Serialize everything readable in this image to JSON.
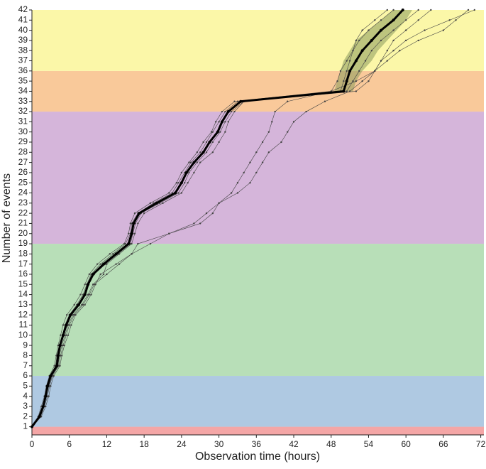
{
  "chart_data": {
    "type": "line",
    "x_label": "Observation time (hours)",
    "y_label": "Number of events",
    "xlim": [
      0,
      72.5
    ],
    "ylim": [
      0.2,
      42
    ],
    "xticks": [
      0,
      6,
      12,
      18,
      24,
      30,
      36,
      42,
      48,
      54,
      60,
      66,
      72
    ],
    "yticks": [
      1,
      2,
      3,
      4,
      5,
      6,
      7,
      8,
      9,
      10,
      11,
      12,
      13,
      14,
      15,
      16,
      17,
      18,
      19,
      20,
      21,
      22,
      23,
      24,
      25,
      26,
      27,
      28,
      29,
      30,
      31,
      32,
      33,
      34,
      35,
      36,
      37,
      38,
      39,
      40,
      41,
      42
    ],
    "bands": [
      {
        "from": 0.2,
        "to": 1,
        "color": "#f4a6a6"
      },
      {
        "from": 1,
        "to": 6,
        "color": "#afc9e2"
      },
      {
        "from": 6,
        "to": 19,
        "color": "#b8dfb8"
      },
      {
        "from": 19,
        "to": 32,
        "color": "#d5b5da"
      },
      {
        "from": 32,
        "to": 36,
        "color": "#f9c99a"
      },
      {
        "from": 36,
        "to": 42,
        "color": "#fbf7a8"
      }
    ],
    "y": [
      1,
      2,
      3,
      4,
      5,
      6,
      7,
      8,
      9,
      10,
      11,
      12,
      13,
      14,
      15,
      16,
      17,
      18,
      19,
      20,
      21,
      22,
      23,
      24,
      25,
      26,
      27,
      28,
      29,
      30,
      31,
      32,
      33,
      34,
      35,
      36,
      37,
      38,
      39,
      40,
      41,
      42
    ],
    "ribbon": {
      "y": [
        34,
        35,
        36,
        37,
        38,
        39,
        40,
        41,
        42
      ],
      "low": [
        48.5,
        49,
        49.5,
        50,
        51,
        52,
        54,
        56,
        58
      ],
      "high": [
        51.5,
        52,
        53,
        54.5,
        55.5,
        57,
        58.5,
        60,
        61
      ],
      "color": "#8a9a5b"
    },
    "series": [
      {
        "color": "#444444",
        "x": [
          0,
          1,
          1.5,
          2,
          2.3,
          2.8,
          3.6,
          3.9,
          4.2,
          4.6,
          5,
          5.6,
          6.8,
          7.8,
          8.5,
          9.2,
          10.5,
          12.5,
          14.8,
          15.5,
          15.8,
          16.5,
          19,
          22,
          23.2,
          24,
          25.2,
          26.5,
          27.5,
          28.8,
          29.5,
          30.5,
          32.5,
          48,
          49,
          49.5,
          50.5,
          51.5,
          52,
          53,
          55,
          57
        ]
      },
      {
        "color": "#444444",
        "x": [
          0,
          1.5,
          2.2,
          2.7,
          3,
          3.5,
          4.5,
          4.8,
          5.2,
          5.8,
          6.3,
          7,
          8.5,
          9.5,
          10.2,
          11,
          13.5,
          16,
          19,
          22,
          26,
          28,
          30,
          33,
          35,
          36,
          37,
          38,
          40,
          41,
          42,
          44,
          47,
          51,
          53,
          55,
          57,
          59,
          62,
          66,
          68,
          70
        ]
      },
      {
        "color": "#444444",
        "x": [
          0,
          1.3,
          1.9,
          2.3,
          2.7,
          3.2,
          4.2,
          4.4,
          4.8,
          5.3,
          5.8,
          6.6,
          8,
          9,
          9.8,
          11.5,
          12,
          14,
          16,
          16.5,
          17,
          18,
          21,
          24,
          25,
          26,
          27,
          29,
          30,
          31,
          31.5,
          32.5,
          34,
          52,
          54,
          55,
          56,
          57,
          58,
          60,
          62,
          64
        ]
      },
      {
        "color": "#444444",
        "x": [
          0,
          1.1,
          1.7,
          2.1,
          2.4,
          2.9,
          3.8,
          4,
          4.4,
          4.9,
          5.3,
          6,
          7.2,
          8.2,
          8.8,
          9.5,
          11,
          13,
          15,
          15.8,
          16,
          17,
          19.5,
          22.5,
          23.5,
          24.5,
          25.5,
          27,
          28,
          29,
          30,
          31,
          33,
          49.5,
          50,
          50.5,
          51,
          51.5,
          52.5,
          54,
          56,
          58
        ]
      },
      {
        "color": "#444444",
        "x": [
          0,
          1.4,
          2,
          2.5,
          2.8,
          3.3,
          4.3,
          4.6,
          5,
          5.5,
          6,
          6.8,
          8.2,
          9.2,
          10,
          12,
          14,
          16,
          17,
          22,
          27,
          29,
          30,
          32,
          33,
          34,
          35,
          36,
          37,
          38,
          38.5,
          39,
          41,
          48,
          52,
          55,
          56,
          58,
          60,
          63,
          67,
          71
        ]
      },
      {
        "color": "#444444",
        "x": [
          0,
          1.2,
          1.8,
          2.2,
          2.6,
          3.1,
          4.1,
          4.3,
          4.6,
          5.1,
          5.6,
          6.3,
          7.6,
          8.6,
          9.1,
          10,
          11.8,
          13.8,
          15.8,
          16.2,
          16.6,
          17.5,
          20.5,
          23.5,
          24.5,
          25.2,
          26.5,
          28,
          29,
          30.2,
          31,
          32,
          34,
          50.5,
          51.5,
          52.5,
          53.5,
          54.5,
          56,
          58,
          60,
          62
        ]
      }
    ],
    "mean": {
      "color": "#000000",
      "x": [
        0,
        1.2,
        1.8,
        2.2,
        2.5,
        3,
        4,
        4.2,
        4.5,
        5,
        5.5,
        6.2,
        7.5,
        8.5,
        9,
        9.8,
        11.5,
        13.5,
        15.5,
        16,
        16.3,
        17.2,
        20,
        23,
        24,
        24.8,
        26,
        27.5,
        28.5,
        29.8,
        30.5,
        31.5,
        33.5,
        50,
        50.5,
        51,
        52,
        53,
        54.5,
        56,
        58,
        59.5
      ]
    }
  }
}
